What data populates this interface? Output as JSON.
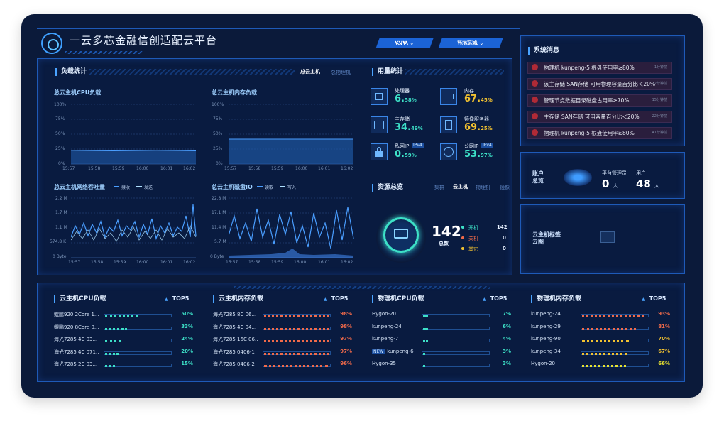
{
  "header": {
    "title": "一云多芯金融信创适配云平台",
    "dropdown_kvm": "KVM",
    "dropdown_region": "所有区域"
  },
  "load_stats": {
    "title": "负载统计",
    "tab_active": "总云主机",
    "tab_inactive": "总物理机",
    "cpu": {
      "title": "总云主机CPU负载",
      "y_ticks": [
        "100%",
        "75%",
        "50%",
        "25%",
        "0%"
      ],
      "x_ticks": [
        "15:57",
        "15:58",
        "15:59",
        "16:00",
        "16:01",
        "16:02"
      ]
    },
    "mem": {
      "title": "总云主机内存负载",
      "y_ticks": [
        "100%",
        "75%",
        "50%",
        "25%",
        "0%"
      ],
      "x_ticks": [
        "15:57",
        "15:58",
        "15:59",
        "16:00",
        "16:01",
        "16:02"
      ]
    },
    "net": {
      "title": "总云主机网络吞吐量",
      "legend_in": "接收",
      "legend_out": "发送",
      "y_ticks": [
        "2.2 M",
        "1.7 M",
        "1.1 M",
        "574.8 K",
        "0 Byte"
      ],
      "x_ticks": [
        "15:57",
        "15:58",
        "15:59",
        "16:00",
        "16:01",
        "16:02"
      ]
    },
    "disk": {
      "title": "总云主机磁盘IO",
      "legend_read": "读取",
      "legend_write": "写入",
      "y_ticks": [
        "22.8 M",
        "17.1 M",
        "11.4 M",
        "5.7 M",
        "0 Byte"
      ],
      "x_ticks": [
        "15:57",
        "15:58",
        "15:59",
        "16:00",
        "16:01",
        "16:02"
      ]
    }
  },
  "usage": {
    "title": "用量统计",
    "items": [
      {
        "label": "处理器",
        "value": "6.",
        "decimal": "58%",
        "color": "#3de0c7",
        "icon": "cpu-icon"
      },
      {
        "label": "内存",
        "value": "67.",
        "decimal": "45%",
        "color": "#f2c230",
        "icon": "memory-icon"
      },
      {
        "label": "主存储",
        "value": "34.",
        "decimal": "49%",
        "color": "#3de0c7",
        "icon": "storage-icon"
      },
      {
        "label": "镜像服务器",
        "value": "69.",
        "decimal": "25%",
        "color": "#f2c230",
        "icon": "image-server-icon"
      },
      {
        "label": "私网IP",
        "tag": "IPv4",
        "value": "0.",
        "decimal": "59%",
        "color": "#3de0c7",
        "icon": "lock-icon"
      },
      {
        "label": "公网IP",
        "tag": "IPv4",
        "value": "53.",
        "decimal": "97%",
        "color": "#3de0c7",
        "icon": "globe-icon"
      }
    ]
  },
  "resources": {
    "title": "资源总览",
    "tabs": [
      "集群",
      "云主机",
      "物理机",
      "镜像"
    ],
    "total": "142",
    "total_label": "总数",
    "status": [
      {
        "label": "开机",
        "value": "142",
        "color": "#3de0c7"
      },
      {
        "label": "关机",
        "value": "0",
        "color": "#f06a4a"
      },
      {
        "label": "其它",
        "value": "0",
        "color": "#f2c230"
      }
    ]
  },
  "messages": {
    "title": "系统消息",
    "items": [
      {
        "text": "物理机 kunpeng-5 根盘使用率≥80%",
        "time": "1分钟前"
      },
      {
        "text": "该主存储 SAN存储 可用物理容量百分比＜20%",
        "time": "12分钟前"
      },
      {
        "text": "管理节点数据目录磁盘占用率≥70%",
        "time": "15分钟前"
      },
      {
        "text": "主存储 SAN存储 可用容量百分比＜20%",
        "time": "22分钟前"
      },
      {
        "text": "物理机 kunpeng-5 根盘使用率≥80%",
        "time": "41分钟前"
      }
    ]
  },
  "accounts": {
    "title": "账户总览",
    "admin_label": "平台管理员",
    "admin_value": "0",
    "user_label": "用户",
    "user_value": "48",
    "unit": "人"
  },
  "tag_cloud": {
    "title": "云主机标签云图"
  },
  "tops": {
    "top5_label": "TOP5",
    "panels": [
      {
        "title": "云主机CPU负载",
        "color": "#3de0c7",
        "rows": [
          {
            "name": "鲲鹏920 2Core 1...",
            "pct": "50%",
            "frac": 0.5
          },
          {
            "name": "鲲鹏920 8Core 0...",
            "pct": "33%",
            "frac": 0.33
          },
          {
            "name": "海光7285 4C 03...",
            "pct": "24%",
            "frac": 0.24
          },
          {
            "name": "海光7285 4C 071...",
            "pct": "20%",
            "frac": 0.2
          },
          {
            "name": "海光7285 2C 03...",
            "pct": "15%",
            "frac": 0.15
          }
        ]
      },
      {
        "title": "云主机内存负载",
        "color": "#f06a4a",
        "rows": [
          {
            "name": "海光7285 8C 06...",
            "pct": "98%",
            "frac": 0.98
          },
          {
            "name": "海光7285 4C 04...",
            "pct": "98%",
            "frac": 0.98
          },
          {
            "name": "海光7285 16C 06...",
            "pct": "97%",
            "frac": 0.97
          },
          {
            "name": "海光7285 0406-1",
            "pct": "97%",
            "frac": 0.97
          },
          {
            "name": "海光7285 0406-2",
            "pct": "96%",
            "frac": 0.96
          }
        ]
      },
      {
        "title": "物理机CPU负载",
        "color": "#3de0c7",
        "rows": [
          {
            "name": "Hygon-20",
            "pct": "7%",
            "frac": 0.07
          },
          {
            "name": "kunpeng-24",
            "pct": "6%",
            "frac": 0.06
          },
          {
            "name": "kunpeng-7",
            "pct": "4%",
            "frac": 0.04
          },
          {
            "name": "kunpeng-6",
            "tag": "NEW",
            "pct": "3%",
            "frac": 0.03
          },
          {
            "name": "Hygon-35",
            "pct": "3%",
            "frac": 0.03
          }
        ]
      },
      {
        "title": "物理机内存负载",
        "color": "#f2c230",
        "rows": [
          {
            "name": "kunpeng-24",
            "pct": "93%",
            "frac": 0.93,
            "color": "#f06a4a"
          },
          {
            "name": "kunpeng-29",
            "pct": "81%",
            "frac": 0.81,
            "color": "#f06a4a"
          },
          {
            "name": "kunpeng-90",
            "pct": "70%",
            "frac": 0.7,
            "color": "#f2c230"
          },
          {
            "name": "kunpeng-34",
            "pct": "67%",
            "frac": 0.67,
            "color": "#f2c230"
          },
          {
            "name": "Hygon-20",
            "pct": "66%",
            "frac": 0.66,
            "color": "#e6e030"
          }
        ]
      }
    ]
  }
}
